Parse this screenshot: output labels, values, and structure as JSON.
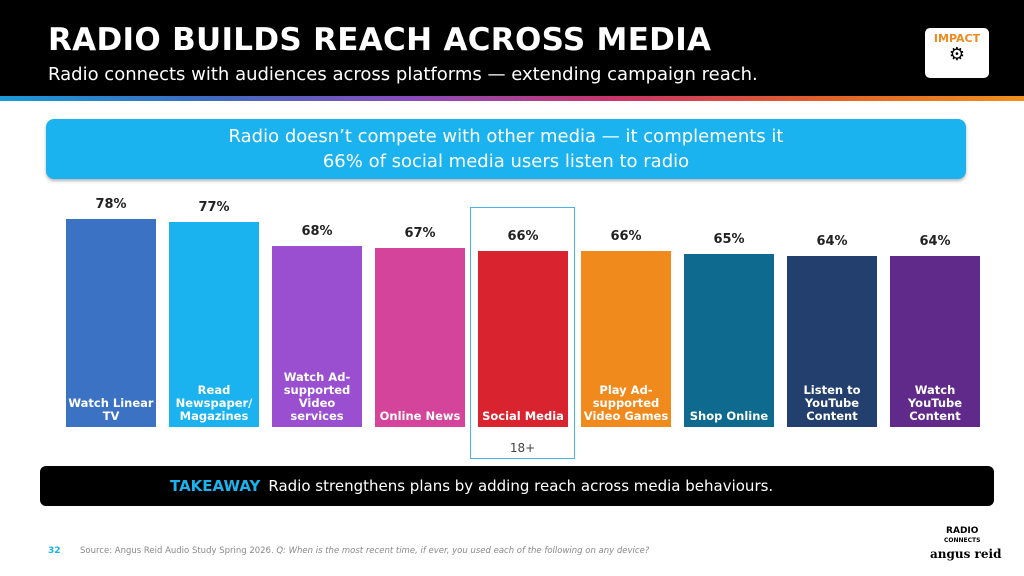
{
  "header": {
    "title": "RADIO BUILDS REACH ACROSS MEDIA",
    "subtitle": "Radio connects with audiences across platforms — extending campaign reach.",
    "badge": "IMPACT",
    "badge_icon": "gears-icon"
  },
  "callout": {
    "line1": "Radio doesn’t compete with other media — it complements it",
    "line2": "66% of social media users listen to radio"
  },
  "chart_data": {
    "type": "bar",
    "categories": [
      "Watch Linear TV",
      "Read Newspaper/ Magazines",
      "Watch Ad-supported Video services",
      "Online News",
      "Social Media",
      "Play Ad-supported Video Games",
      "Shop Online",
      "Listen to YouTube Content",
      "Watch YouTube Content"
    ],
    "values": [
      78,
      77,
      68,
      67,
      66,
      66,
      65,
      64,
      64
    ],
    "labels": [
      "78%",
      "77%",
      "68%",
      "67%",
      "66%",
      "66%",
      "65%",
      "64%",
      "64%"
    ],
    "colors": [
      "#3b72c4",
      "#1ab3ef",
      "#9a4fd0",
      "#d4449a",
      "#d9232e",
      "#f08a1c",
      "#0e6a8e",
      "#223f6e",
      "#5f2a8a"
    ],
    "highlight": {
      "category": "Social Media",
      "note": "18+"
    },
    "ylim": [
      0,
      100
    ]
  },
  "takeaway": {
    "label": "TAKEAWAY",
    "text": "Radio strengthens plans by adding reach across media behaviours."
  },
  "footer": {
    "page": "32",
    "source": "Source:  Angus Reid Audio Study Spring 2026. ",
    "question": "Q: When is the most recent time, if ever, you used each of the following on any device?",
    "logo1": "RADIO",
    "logo1_sub": "CONNECTS",
    "logo2": "angus reid"
  }
}
